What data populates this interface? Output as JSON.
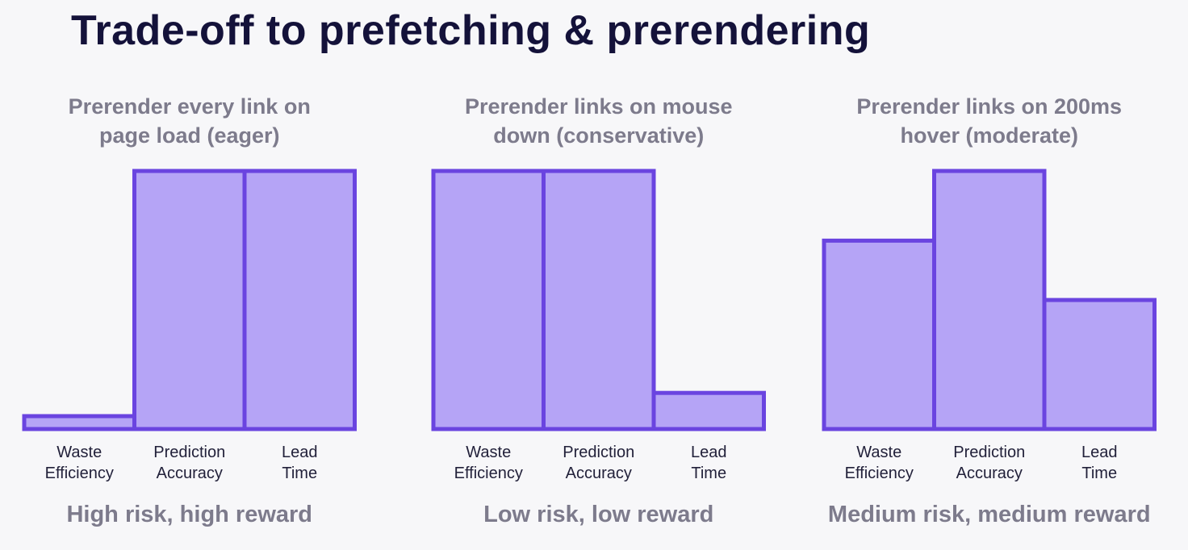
{
  "title": "Trade-off to prefetching & prerendering",
  "chart_data": [
    {
      "type": "bar",
      "title_lines": [
        "Prerender every link on",
        "page load (eager)"
      ],
      "categories": [
        [
          "Waste",
          "Efficiency"
        ],
        [
          "Prediction",
          "Accuracy"
        ],
        [
          "Lead",
          "Time"
        ]
      ],
      "values": [
        5,
        100,
        100
      ],
      "ylim": [
        0,
        100
      ],
      "grid": false,
      "footer": "High risk, high reward"
    },
    {
      "type": "bar",
      "title_lines": [
        "Prerender links on mouse",
        "down (conservative)"
      ],
      "categories": [
        [
          "Waste",
          "Efficiency"
        ],
        [
          "Prediction",
          "Accuracy"
        ],
        [
          "Lead",
          "Time"
        ]
      ],
      "values": [
        100,
        100,
        14
      ],
      "ylim": [
        0,
        100
      ],
      "grid": false,
      "footer": "Low risk, low reward"
    },
    {
      "type": "bar",
      "title_lines": [
        "Prerender links on 200ms",
        "hover (moderate)"
      ],
      "categories": [
        [
          "Waste",
          "Efficiency"
        ],
        [
          "Prediction",
          "Accuracy"
        ],
        [
          "Lead",
          "Time"
        ]
      ],
      "values": [
        73,
        100,
        50
      ],
      "ylim": [
        0,
        100
      ],
      "grid": false,
      "footer": "Medium risk, medium reward"
    }
  ],
  "colors": {
    "bar_fill": "#b5a4f6",
    "bar_stroke": "#6a44e0",
    "title": "#14123a",
    "subtitle": "#7d7b8c"
  }
}
